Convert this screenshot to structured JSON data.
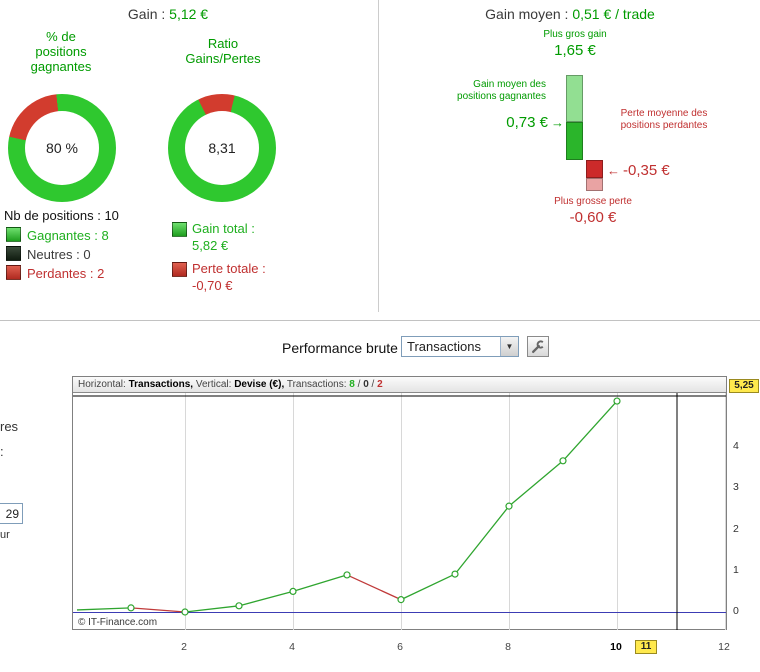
{
  "colors": {
    "green_text": "#009B00",
    "donut_green": "#2FC82F",
    "donut_red": "#D23C2E",
    "red_text": "#C03030",
    "highlight_yellow": "#FFE94D"
  },
  "summary": {
    "gain_label": "Gain :",
    "gain_value": "5,12 €",
    "winrate_title": "% de positions gagnantes",
    "ratio_title": "Ratio Gains/Pertes",
    "winrate_donut": {
      "center_label": "80 %",
      "green_pct": 80,
      "red_pct": 20
    },
    "ratio_donut": {
      "center_label": "8,31",
      "green_pct": 89,
      "red_pct": 11
    },
    "nb_positions_label": "Nb de positions : 10",
    "legend": {
      "gagnantes": "Gagnantes : 8",
      "neutres": "Neutres : 0",
      "perdantes": "Perdantes : 2"
    },
    "gain_total_label": "Gain total :",
    "gain_total_value": "5,82 €",
    "perte_totale_label": "Perte totale :",
    "perte_totale_value": "-0,70 €"
  },
  "gain_moyen": {
    "title_label": "Gain moyen :",
    "title_value": "0,51 € / trade",
    "plus_gros_gain_label": "Plus gros gain",
    "plus_gros_gain_value": "1,65 €",
    "avg_gain_label": "Gain moyen des positions gagnantes",
    "avg_gain_value": "0,73 €",
    "arrow_right": "→",
    "arrow_left": "←",
    "avg_loss_label": "Perte moyenne des positions perdantes",
    "avg_loss_value": "-0,35 €",
    "plus_grosse_perte_label": "Plus grosse perte",
    "plus_grosse_perte_value": "-0,60 €",
    "bar_values": {
      "max_gain": 1.65,
      "avg_gain": 0.73,
      "avg_loss": -0.35,
      "max_loss": -0.6
    }
  },
  "performance": {
    "title": "Performance brute",
    "dropdown_value": "Transactions",
    "chevron": "▼"
  },
  "left_panel_fragments": {
    "f1": "res",
    "f2": ":",
    "f3": "29",
    "f4": "ur"
  },
  "chart_data": {
    "type": "line",
    "title": "Performance brute",
    "xlabel": "Transactions",
    "ylabel": "Devise (€)",
    "x": [
      0,
      1,
      2,
      3,
      4,
      5,
      6,
      7,
      8,
      9,
      10
    ],
    "y": [
      0.05,
      0.1,
      0.0,
      0.15,
      0.5,
      0.9,
      0.3,
      0.92,
      2.57,
      3.67,
      5.12
    ],
    "up_color": "#2FA52F",
    "down_color": "#C03A3A",
    "zero_line_color": "#3C3CB4",
    "xlim": [
      0,
      12
    ],
    "ylim": [
      -0.45,
      5.3
    ],
    "x_gridlines": [
      2,
      4,
      6,
      8,
      10,
      12
    ],
    "x_ticks": [
      {
        "v": 2,
        "label": "2"
      },
      {
        "v": 4,
        "label": "4"
      },
      {
        "v": 6,
        "label": "6"
      },
      {
        "v": 8,
        "label": "8"
      },
      {
        "v": 10,
        "label": "10",
        "bold": true
      },
      {
        "v": 12,
        "label": "12"
      }
    ],
    "y_ticks": [
      0,
      1,
      2,
      3,
      4
    ],
    "crosshair": {
      "x": 11.1,
      "y": 5.25,
      "x_label": "11",
      "y_label": "5,25"
    },
    "header": {
      "h_label": "Horizontal:",
      "h_value": "Transactions,",
      "v_label": "Vertical:",
      "v_value": "Devise (€),",
      "t_label": "Transactions:",
      "wins": "8",
      "sep": "/",
      "neutral": "0",
      "losses": "2"
    },
    "copyright": "© IT-Finance.com"
  }
}
